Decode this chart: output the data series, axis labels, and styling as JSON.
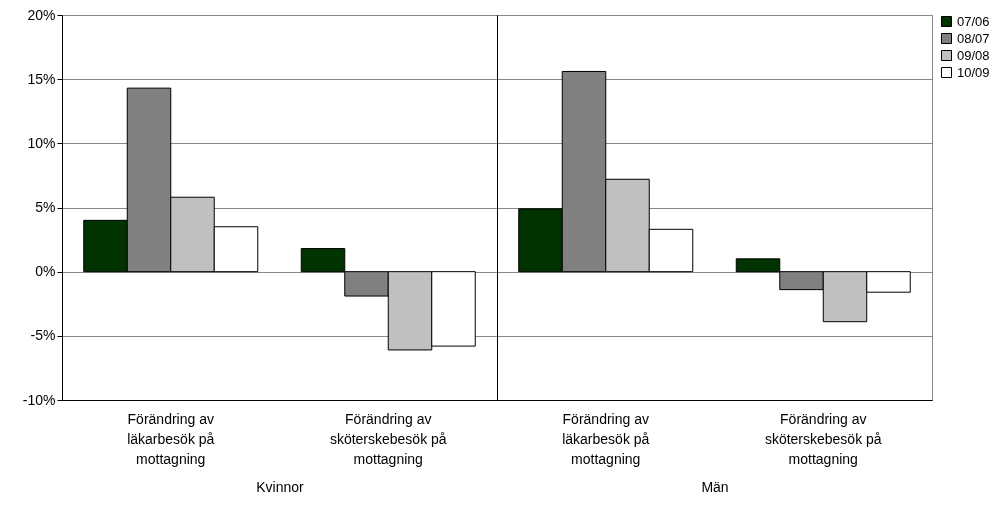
{
  "chart_data": [
    {
      "type": "bar",
      "xlabel": "Kvinnor",
      "categories": [
        "Förändring av läkarbesök på mottagning",
        "Förändring av sköterskebesök på mottagning"
      ],
      "series": [
        {
          "color": "#003300",
          "values": [
            4.0,
            1.8
          ]
        },
        {
          "color": "#808080",
          "values": [
            14.3,
            -1.9
          ]
        },
        {
          "color": "#c0c0c0",
          "values": [
            5.8,
            -6.1
          ]
        },
        {
          "color": "#ffffff",
          "values": [
            3.5,
            -5.8
          ]
        }
      ],
      "ylim": [
        -10,
        20
      ],
      "yticks": [
        {
          "value": -10,
          "label": "-10%"
        },
        {
          "value": -5,
          "label": "-5%"
        },
        {
          "value": 0,
          "label": "0%"
        },
        {
          "value": 5,
          "label": "5%"
        },
        {
          "value": 10,
          "label": "10%"
        },
        {
          "value": 15,
          "label": "15%"
        },
        {
          "value": 20,
          "label": "20%"
        }
      ],
      "grid": "y"
    },
    {
      "type": "bar",
      "xlabel": "Män",
      "categories": [
        "Förändring av läkarbesök på mottagning",
        "Förändring av sköterskebesök på mottagning"
      ],
      "series": [
        {
          "name": "07/06",
          "color": "#003300",
          "values": [
            4.9,
            1.0
          ]
        },
        {
          "name": "08/07",
          "color": "#808080",
          "values": [
            15.6,
            -1.4
          ]
        },
        {
          "name": "09/08",
          "color": "#c0c0c0",
          "values": [
            7.2,
            -3.9
          ]
        },
        {
          "name": "10/09",
          "color": "#ffffff",
          "values": [
            3.3,
            -1.6
          ]
        }
      ],
      "ylim": [
        -10,
        20
      ],
      "yticks": [
        -10,
        -5,
        0,
        5,
        10,
        15,
        20
      ],
      "grid": "y",
      "tick_labels": "x",
      "legend": "right"
    }
  ]
}
